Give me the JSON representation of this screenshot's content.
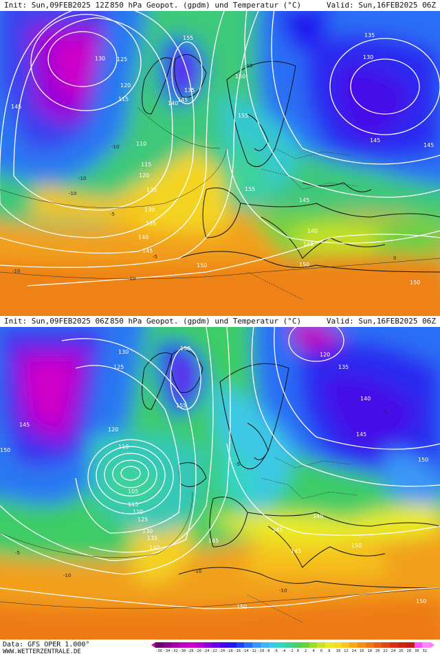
{
  "panels": [
    {
      "init": "Init: Sun,09FEB2025 12Z",
      "title": "850 hPa Geopot. (gpdm) und Temperatur (°C)",
      "valid": "Valid: Sun,16FEB2025 06Z",
      "labels": {
        "geo": [
          "130",
          "125",
          "120",
          "115",
          "145",
          "110",
          "115",
          "120",
          "125",
          "130",
          "135",
          "140",
          "145",
          "150",
          "155",
          "140",
          "145",
          "150",
          "155",
          "135",
          "130",
          "145",
          "145",
          "155",
          "145",
          "140",
          "145",
          "150",
          "150",
          "135"
        ],
        "temp": [
          "-10",
          "-10",
          "-10",
          "-5",
          "-5",
          "-10",
          "-10",
          "0",
          "-10"
        ]
      }
    },
    {
      "init": "Init: Sun,09FEB2025 06Z",
      "title": "850 hPa Geopot. (gpdm) und Temperatur (°C)",
      "valid": "Valid: Sun,16FEB2025 06Z",
      "labels": {
        "geo": [
          "130",
          "125",
          "120",
          "145",
          "150",
          "150",
          "155",
          "110",
          "105",
          "115",
          "120",
          "125",
          "130",
          "135",
          "140",
          "145",
          "145",
          "145",
          "140",
          "150",
          "150",
          "150",
          "120",
          "135",
          "140",
          "145",
          "150"
        ],
        "temp": [
          "-5",
          "-10",
          "-10",
          "-10",
          "-5",
          "-5"
        ]
      }
    }
  ],
  "footer": {
    "data_source": "Data: GFS OPER 1.000°",
    "website": "WWW.WETTERZENTRALE.DE"
  },
  "legend": {
    "ticks": [
      "-36",
      "-34",
      "-32",
      "-30",
      "-28",
      "-26",
      "-24",
      "-22",
      "-20",
      "-18",
      "-16",
      "-14",
      "-12",
      "-10",
      "-8",
      "-6",
      "-4",
      "-2",
      "0",
      "2",
      "4",
      "6",
      "8",
      "10",
      "12",
      "14",
      "16",
      "18",
      "20",
      "22",
      "24",
      "26",
      "28",
      "30",
      "32"
    ],
    "colors": [
      "#6a006a",
      "#8a008a",
      "#a800a8",
      "#c000c0",
      "#cc00cc",
      "#b400d0",
      "#9000e0",
      "#6a00e8",
      "#4400ee",
      "#2218f0",
      "#1e44f2",
      "#2a6ef5",
      "#3a96f6",
      "#3fb4f4",
      "#3cc8e6",
      "#36d4c4",
      "#3ed29a",
      "#4ccf66",
      "#68d23c",
      "#9adc2a",
      "#c8e424",
      "#eaea26",
      "#f6dc24",
      "#f8c61e",
      "#f6ac1a",
      "#f29018",
      "#ee7818",
      "#e86018",
      "#e04818",
      "#d83018",
      "#cc2418",
      "#c01e1e",
      "#ff50ff",
      "#ff88ff"
    ]
  },
  "colors": {
    "isohypse": "#ffffff",
    "coastline": "#111111",
    "border": "#222222"
  }
}
